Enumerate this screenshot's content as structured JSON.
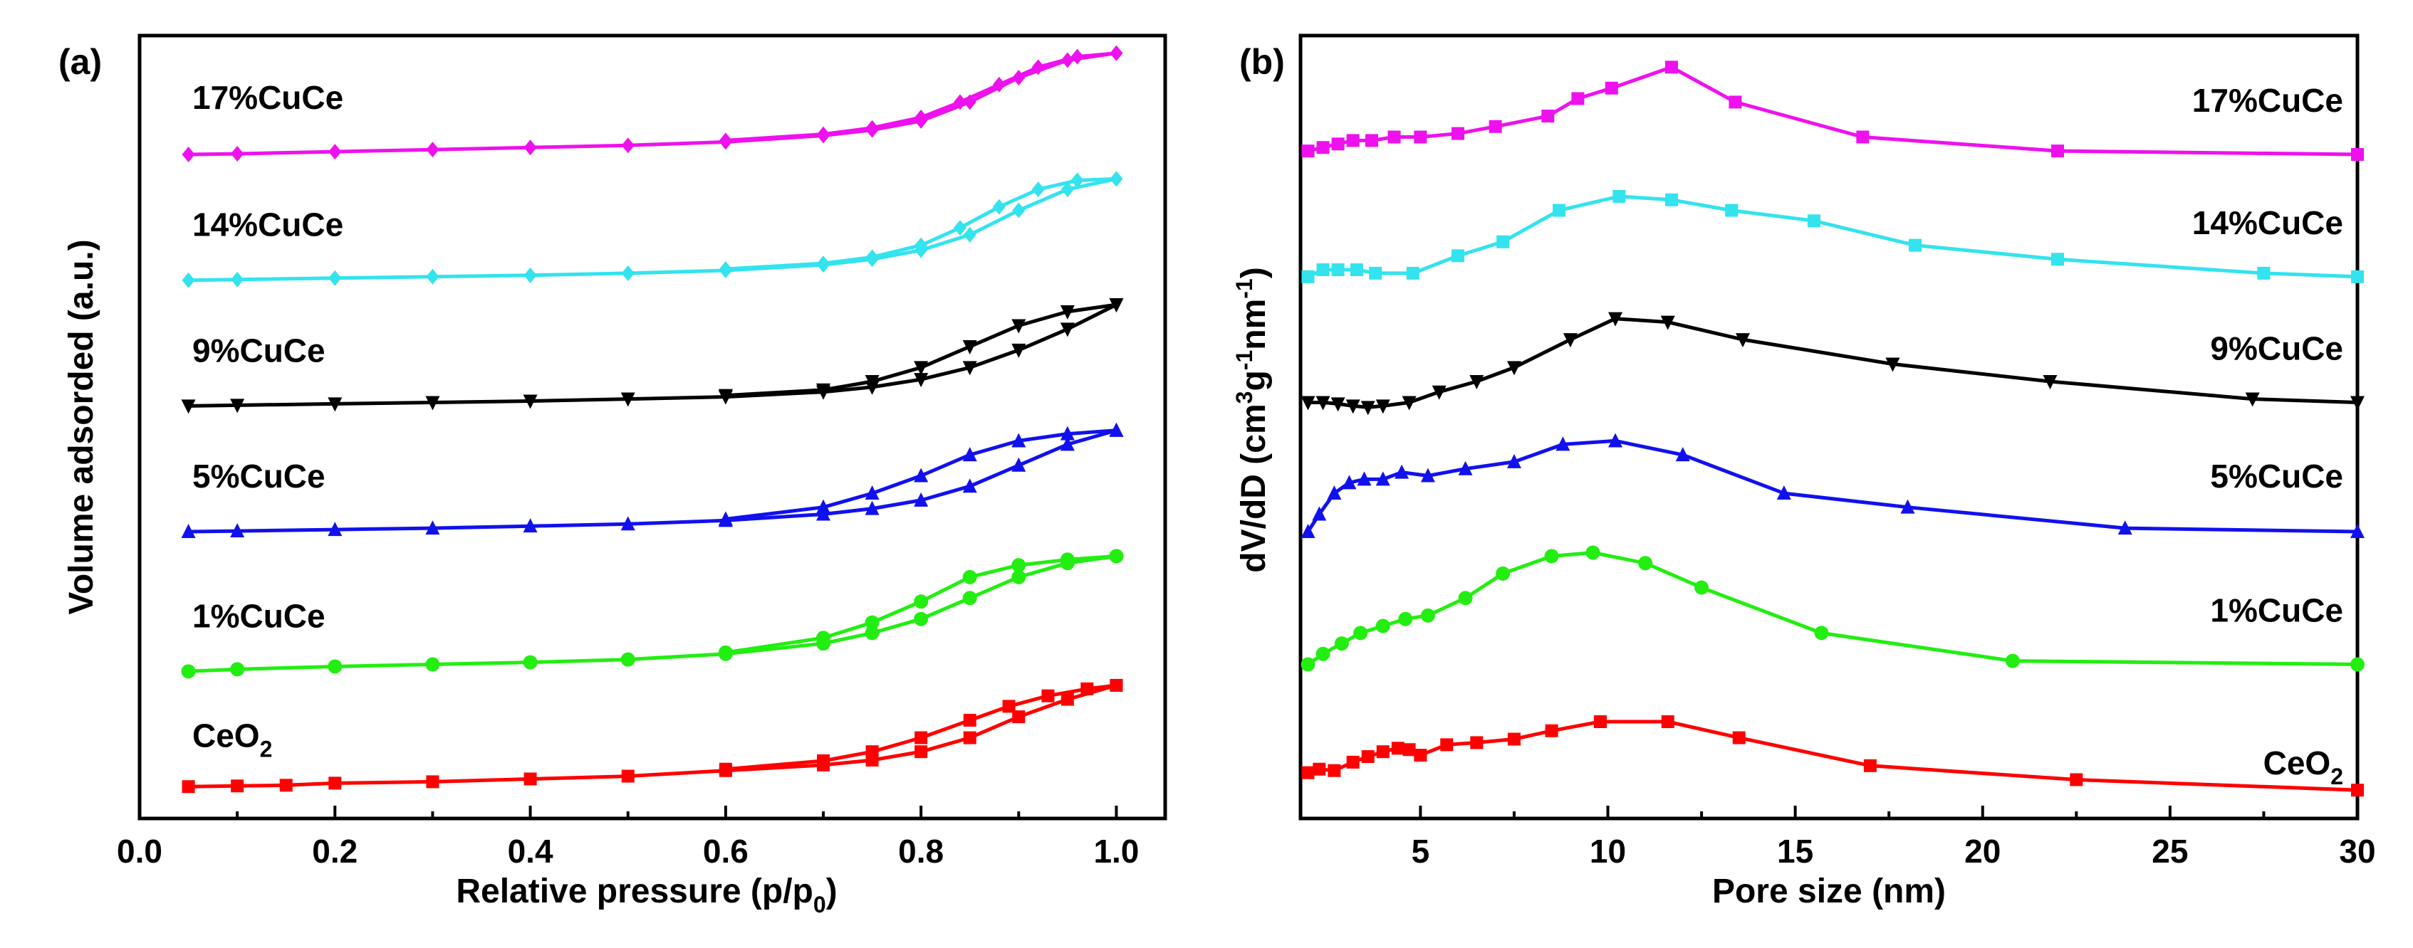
{
  "chart_data": [
    {
      "type": "line",
      "panel_label": "(a)",
      "xlabel": "Relative pressure (p/p",
      "xlabel_sub": "0",
      "xlabel_end": ")",
      "ylabel": "Volume adsorded (a.u.)",
      "xlim": [
        0.0,
        1.05
      ],
      "ylim": [
        0,
        100
      ],
      "xticks": [
        0.0,
        0.2,
        0.4,
        0.6,
        0.8,
        1.0
      ],
      "xtick_labels": [
        "0.0",
        "0.2",
        "0.4",
        "0.6",
        "0.8",
        "1.0"
      ],
      "yticks_shown": false,
      "series": [
        {
          "name": "CeO2",
          "label": "CeO",
          "label_sub": "2",
          "color": "#ff0000",
          "marker": "square",
          "adsorption": [
            [
              0.05,
              1.5
            ],
            [
              0.1,
              1.6
            ],
            [
              0.15,
              1.7
            ],
            [
              0.2,
              2.0
            ],
            [
              0.3,
              2.2
            ],
            [
              0.4,
              2.6
            ],
            [
              0.5,
              3.0
            ],
            [
              0.6,
              3.8
            ],
            [
              0.7,
              4.6
            ],
            [
              0.75,
              5.3
            ],
            [
              0.8,
              6.5
            ],
            [
              0.85,
              8.5
            ],
            [
              0.9,
              11.5
            ],
            [
              0.95,
              14.0
            ],
            [
              1.0,
              16.0
            ]
          ],
          "desorption": [
            [
              1.0,
              16.0
            ],
            [
              0.97,
              15.5
            ],
            [
              0.93,
              14.5
            ],
            [
              0.89,
              13.0
            ],
            [
              0.85,
              11.0
            ],
            [
              0.8,
              8.5
            ],
            [
              0.75,
              6.5
            ],
            [
              0.7,
              5.2
            ],
            [
              0.6,
              4.0
            ]
          ]
        },
        {
          "name": "1%CuCe",
          "label": "1%CuCe",
          "color": "#22ee11",
          "marker": "circle",
          "adsorption": [
            [
              0.05,
              18.0
            ],
            [
              0.1,
              18.3
            ],
            [
              0.2,
              18.7
            ],
            [
              0.3,
              19.0
            ],
            [
              0.4,
              19.3
            ],
            [
              0.5,
              19.7
            ],
            [
              0.6,
              20.5
            ],
            [
              0.7,
              22.0
            ],
            [
              0.75,
              23.5
            ],
            [
              0.8,
              25.5
            ],
            [
              0.85,
              28.5
            ],
            [
              0.9,
              31.5
            ],
            [
              0.95,
              33.5
            ],
            [
              1.0,
              34.5
            ]
          ],
          "desorption": [
            [
              1.0,
              34.5
            ],
            [
              0.95,
              34.0
            ],
            [
              0.9,
              33.2
            ],
            [
              0.85,
              31.5
            ],
            [
              0.8,
              28.0
            ],
            [
              0.75,
              25.0
            ],
            [
              0.7,
              22.8
            ],
            [
              0.6,
              20.7
            ]
          ]
        },
        {
          "name": "5%CuCe",
          "label": "5%CuCe",
          "color": "#1111ee",
          "marker": "triangle-up",
          "adsorption": [
            [
              0.05,
              38.0
            ],
            [
              0.1,
              38.1
            ],
            [
              0.2,
              38.3
            ],
            [
              0.3,
              38.5
            ],
            [
              0.4,
              38.8
            ],
            [
              0.5,
              39.1
            ],
            [
              0.6,
              39.6
            ],
            [
              0.7,
              40.5
            ],
            [
              0.75,
              41.3
            ],
            [
              0.8,
              42.5
            ],
            [
              0.85,
              44.5
            ],
            [
              0.9,
              47.5
            ],
            [
              0.95,
              50.5
            ],
            [
              1.0,
              52.5
            ]
          ],
          "desorption": [
            [
              1.0,
              52.5
            ],
            [
              0.95,
              52.0
            ],
            [
              0.9,
              51.0
            ],
            [
              0.85,
              49.0
            ],
            [
              0.8,
              46.0
            ],
            [
              0.75,
              43.5
            ],
            [
              0.7,
              41.5
            ],
            [
              0.6,
              39.8
            ]
          ]
        },
        {
          "name": "9%CuCe",
          "label": "9%CuCe",
          "color": "#000000",
          "marker": "triangle-down",
          "adsorption": [
            [
              0.05,
              56.0
            ],
            [
              0.1,
              56.1
            ],
            [
              0.2,
              56.3
            ],
            [
              0.3,
              56.5
            ],
            [
              0.4,
              56.7
            ],
            [
              0.5,
              57.0
            ],
            [
              0.6,
              57.3
            ],
            [
              0.7,
              58.0
            ],
            [
              0.75,
              58.7
            ],
            [
              0.8,
              59.8
            ],
            [
              0.85,
              61.5
            ],
            [
              0.9,
              64.0
            ],
            [
              0.95,
              67.0
            ],
            [
              1.0,
              70.5
            ]
          ],
          "desorption": [
            [
              1.0,
              70.5
            ],
            [
              0.95,
              69.5
            ],
            [
              0.9,
              67.5
            ],
            [
              0.85,
              64.5
            ],
            [
              0.8,
              61.5
            ],
            [
              0.75,
              59.5
            ],
            [
              0.7,
              58.3
            ],
            [
              0.6,
              57.5
            ]
          ]
        },
        {
          "name": "14%CuCe",
          "label": "14%CuCe",
          "color": "#33e3ee",
          "marker": "diamond",
          "adsorption": [
            [
              0.05,
              74.0
            ],
            [
              0.1,
              74.1
            ],
            [
              0.2,
              74.3
            ],
            [
              0.3,
              74.5
            ],
            [
              0.4,
              74.7
            ],
            [
              0.5,
              75.0
            ],
            [
              0.6,
              75.4
            ],
            [
              0.7,
              76.2
            ],
            [
              0.75,
              77.0
            ],
            [
              0.8,
              78.3
            ],
            [
              0.85,
              80.5
            ],
            [
              0.9,
              84.0
            ],
            [
              0.95,
              87.0
            ],
            [
              1.0,
              88.5
            ]
          ],
          "desorption": [
            [
              1.0,
              88.5
            ],
            [
              0.96,
              88.3
            ],
            [
              0.92,
              87.0
            ],
            [
              0.88,
              84.5
            ],
            [
              0.84,
              81.5
            ],
            [
              0.8,
              79.0
            ],
            [
              0.75,
              77.3
            ],
            [
              0.7,
              76.4
            ],
            [
              0.6,
              75.6
            ]
          ]
        },
        {
          "name": "17%CuCe",
          "label": "17%CuCe",
          "color": "#ee11ee",
          "marker": "diamond",
          "adsorption": [
            [
              0.05,
              92.0
            ],
            [
              0.1,
              92.1
            ],
            [
              0.2,
              92.4
            ],
            [
              0.3,
              92.7
            ],
            [
              0.4,
              93.0
            ],
            [
              0.5,
              93.3
            ],
            [
              0.6,
              93.8
            ],
            [
              0.7,
              94.7
            ],
            [
              0.75,
              95.5
            ],
            [
              0.8,
              96.8
            ],
            [
              0.85,
              99.5
            ],
            [
              0.9,
              103.0
            ],
            [
              0.95,
              105.5
            ],
            [
              1.0,
              106.5
            ]
          ],
          "desorption": [
            [
              1.0,
              106.5
            ],
            [
              0.96,
              106.0
            ],
            [
              0.92,
              104.5
            ],
            [
              0.88,
              102.0
            ],
            [
              0.84,
              99.5
            ],
            [
              0.8,
              97.3
            ],
            [
              0.75,
              95.8
            ],
            [
              0.7,
              94.9
            ],
            [
              0.6,
              94.0
            ]
          ]
        }
      ]
    },
    {
      "type": "line",
      "panel_label": "(b)",
      "xlabel": "Pore size (nm)",
      "ylabel": "dV/dD (cm",
      "ylabel_sup1": "3",
      "ylabel_mid1": "g",
      "ylabel_sup2": "-1",
      "ylabel_mid2": "nm",
      "ylabel_sup3": "-1",
      "ylabel_end": ")",
      "xlim": [
        1.8,
        30
      ],
      "ylim": [
        0,
        100
      ],
      "xticks": [
        5,
        10,
        15,
        20,
        25,
        30
      ],
      "xtick_labels": [
        "5",
        "10",
        "15",
        "20",
        "25",
        "30"
      ],
      "yticks_shown": false,
      "series": [
        {
          "name": "CeO2",
          "label": "CeO",
          "label_sub": "2",
          "color": "#ff0000",
          "marker": "square",
          "points": [
            [
              2.0,
              3.5
            ],
            [
              2.3,
              4.0
            ],
            [
              2.7,
              3.8
            ],
            [
              3.2,
              5.0
            ],
            [
              3.6,
              5.8
            ],
            [
              4.0,
              6.5
            ],
            [
              4.4,
              7.0
            ],
            [
              4.7,
              6.8
            ],
            [
              5.0,
              6.0
            ],
            [
              5.7,
              7.5
            ],
            [
              6.5,
              7.8
            ],
            [
              7.5,
              8.3
            ],
            [
              8.5,
              9.5
            ],
            [
              9.8,
              10.8
            ],
            [
              11.6,
              10.8
            ],
            [
              13.5,
              8.5
            ],
            [
              17.0,
              4.5
            ],
            [
              22.5,
              2.5
            ],
            [
              30.0,
              1.0
            ]
          ]
        },
        {
          "name": "1%CuCe",
          "label": "1%CuCe",
          "color": "#22ee11",
          "marker": "circle",
          "points": [
            [
              2.0,
              19.0
            ],
            [
              2.4,
              20.5
            ],
            [
              2.9,
              22.0
            ],
            [
              3.4,
              23.5
            ],
            [
              4.0,
              24.5
            ],
            [
              4.6,
              25.5
            ],
            [
              5.2,
              26.0
            ],
            [
              6.2,
              28.5
            ],
            [
              7.2,
              32.0
            ],
            [
              8.5,
              34.5
            ],
            [
              9.6,
              35.0
            ],
            [
              11.0,
              33.5
            ],
            [
              12.5,
              30.0
            ],
            [
              15.7,
              23.5
            ],
            [
              20.8,
              19.5
            ],
            [
              30.0,
              19.0
            ]
          ]
        },
        {
          "name": "5%CuCe",
          "label": "5%CuCe",
          "color": "#1111ee",
          "marker": "triangle-up",
          "points": [
            [
              2.0,
              38.0
            ],
            [
              2.3,
              40.5
            ],
            [
              2.7,
              43.5
            ],
            [
              3.1,
              45.0
            ],
            [
              3.5,
              45.5
            ],
            [
              4.0,
              45.5
            ],
            [
              4.5,
              46.5
            ],
            [
              5.2,
              46.0
            ],
            [
              6.2,
              47.0
            ],
            [
              7.5,
              48.0
            ],
            [
              8.8,
              50.5
            ],
            [
              10.2,
              51.0
            ],
            [
              12.0,
              49.0
            ],
            [
              14.7,
              43.5
            ],
            [
              18.0,
              41.5
            ],
            [
              23.8,
              38.5
            ],
            [
              30.0,
              38.0
            ]
          ]
        },
        {
          "name": "9%CuCe",
          "label": "9%CuCe",
          "color": "#000000",
          "marker": "triangle-down",
          "points": [
            [
              2.0,
              56.5
            ],
            [
              2.4,
              56.5
            ],
            [
              2.8,
              56.3
            ],
            [
              3.2,
              56.0
            ],
            [
              3.6,
              55.8
            ],
            [
              4.0,
              56.0
            ],
            [
              4.7,
              56.5
            ],
            [
              5.5,
              58.0
            ],
            [
              6.5,
              59.5
            ],
            [
              7.5,
              61.5
            ],
            [
              9.0,
              65.5
            ],
            [
              10.2,
              68.5
            ],
            [
              11.6,
              68.0
            ],
            [
              13.6,
              65.5
            ],
            [
              17.6,
              62.0
            ],
            [
              21.8,
              59.5
            ],
            [
              27.2,
              57.0
            ],
            [
              30.0,
              56.5
            ]
          ]
        },
        {
          "name": "14%CuCe",
          "label": "14%CuCe",
          "color": "#33e3ee",
          "marker": "square",
          "points": [
            [
              2.0,
              74.5
            ],
            [
              2.4,
              75.5
            ],
            [
              2.8,
              75.5
            ],
            [
              3.3,
              75.5
            ],
            [
              3.8,
              75.0
            ],
            [
              4.8,
              75.0
            ],
            [
              6.0,
              77.5
            ],
            [
              7.2,
              79.5
            ],
            [
              8.7,
              84.0
            ],
            [
              10.3,
              86.0
            ],
            [
              11.7,
              85.5
            ],
            [
              13.3,
              84.0
            ],
            [
              15.5,
              82.5
            ],
            [
              18.2,
              79.0
            ],
            [
              22.0,
              77.0
            ],
            [
              27.5,
              75.0
            ],
            [
              30.0,
              74.5
            ]
          ]
        },
        {
          "name": "17%CuCe",
          "label": "17%CuCe",
          "color": "#ee11ee",
          "marker": "square",
          "points": [
            [
              2.0,
              92.5
            ],
            [
              2.4,
              93.0
            ],
            [
              2.8,
              93.5
            ],
            [
              3.2,
              94.0
            ],
            [
              3.7,
              94.0
            ],
            [
              4.3,
              94.5
            ],
            [
              5.0,
              94.5
            ],
            [
              6.0,
              95.0
            ],
            [
              7.0,
              96.0
            ],
            [
              8.4,
              97.5
            ],
            [
              9.2,
              100.0
            ],
            [
              10.1,
              101.5
            ],
            [
              11.7,
              104.5
            ],
            [
              13.4,
              99.5
            ],
            [
              16.8,
              94.5
            ],
            [
              22.0,
              92.5
            ],
            [
              30.0,
              92.0
            ]
          ]
        }
      ]
    }
  ]
}
